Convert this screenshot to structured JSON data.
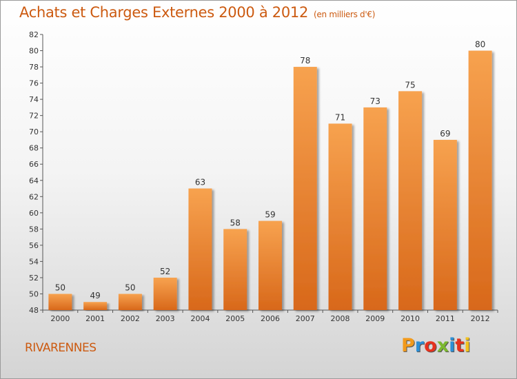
{
  "header": {
    "title": "Achats et Charges Externes 2000 à 2012",
    "subtitle": "(en milliers d'€)"
  },
  "location": "RIVARENNES",
  "logo": {
    "letters": [
      "P",
      "r",
      "o",
      "x",
      "i",
      "t",
      "i"
    ],
    "colors": [
      "#f29a1c",
      "#2c8fd6",
      "#e6321e",
      "#7cb82f",
      "#2c8fd6",
      "#e6321e",
      "#f2c21c"
    ]
  },
  "colors": {
    "bar_top": "#f7a24f",
    "bar_bottom": "#d8681a",
    "accent": "#cc5a10"
  },
  "chart_data": {
    "type": "bar",
    "categories": [
      "2000",
      "2001",
      "2002",
      "2003",
      "2004",
      "2005",
      "2006",
      "2007",
      "2008",
      "2009",
      "2010",
      "2011",
      "2012"
    ],
    "values": [
      50,
      49,
      50,
      52,
      63,
      58,
      59,
      78,
      71,
      73,
      75,
      69,
      80
    ],
    "title": "Achats et Charges Externes 2000 à 2012",
    "subtitle": "(en milliers d'€)",
    "xlabel": "",
    "ylabel": "",
    "ylim": [
      48,
      82
    ],
    "yticks": [
      48,
      50,
      52,
      54,
      56,
      58,
      60,
      62,
      64,
      66,
      68,
      70,
      72,
      74,
      76,
      78,
      80,
      82
    ],
    "grid": false,
    "legend": "none"
  }
}
